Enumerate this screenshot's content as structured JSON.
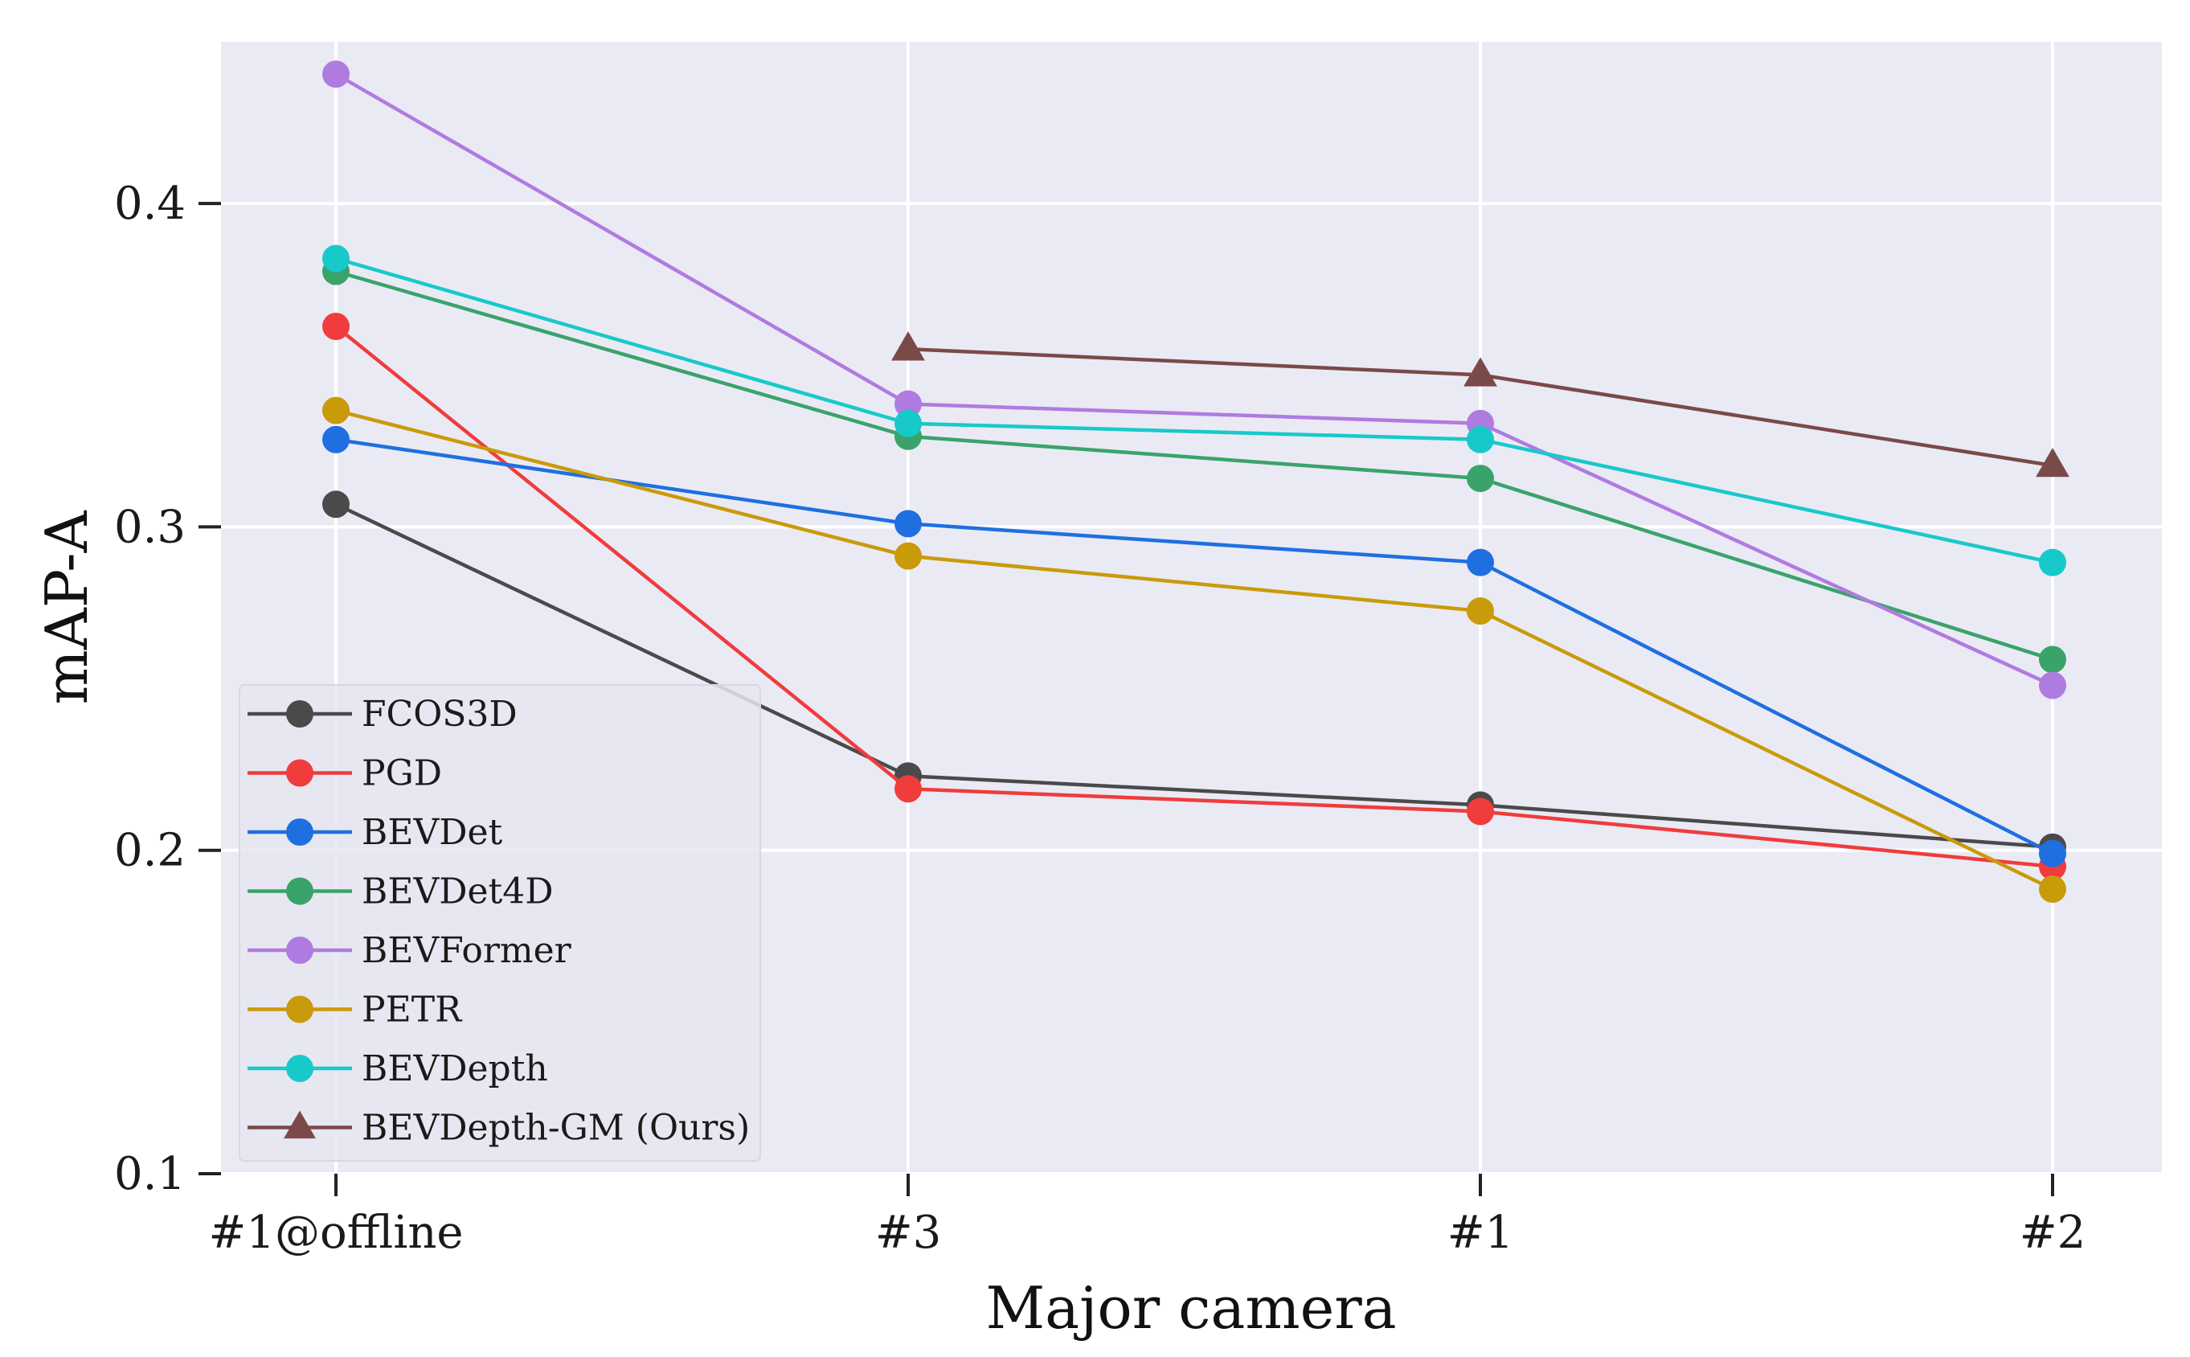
{
  "chart_data": {
    "type": "line",
    "title": "",
    "xlabel": "Major camera",
    "ylabel": "mAP-A",
    "categories": [
      "#1@offline",
      "#3",
      "#1",
      "#2"
    ],
    "ylim": [
      0.1,
      0.45
    ],
    "yticks": [
      0.1,
      0.2,
      0.3,
      0.4
    ],
    "ytick_labels": [
      "0.1",
      "0.2",
      "0.3",
      "0.4"
    ],
    "grid": true,
    "legend_position": "lower-left",
    "background": "#eaeaf5",
    "series": [
      {
        "name": "FCOS3D",
        "color": "#4a4a4a",
        "marker": "circle",
        "values": [
          0.307,
          0.223,
          0.214,
          0.201
        ]
      },
      {
        "name": "PGD",
        "color": "#f03c3c",
        "marker": "circle",
        "values": [
          0.362,
          0.219,
          0.212,
          0.195
        ]
      },
      {
        "name": "BEVDet",
        "color": "#1f6fe0",
        "marker": "circle",
        "values": [
          0.327,
          0.301,
          0.289,
          0.199
        ]
      },
      {
        "name": "BEVDet4D",
        "color": "#3aa36a",
        "marker": "circle",
        "values": [
          0.379,
          0.328,
          0.315,
          0.259
        ]
      },
      {
        "name": "BEVFormer",
        "color": "#b07be0",
        "marker": "circle",
        "values": [
          0.44,
          0.338,
          0.332,
          0.251
        ]
      },
      {
        "name": "PETR",
        "color": "#c99a0a",
        "marker": "circle",
        "values": [
          0.336,
          0.291,
          0.274,
          0.188
        ]
      },
      {
        "name": "BEVDepth",
        "color": "#18c9c9",
        "marker": "circle",
        "values": [
          0.383,
          0.332,
          0.327,
          0.289
        ]
      },
      {
        "name": "BEVDepth-GM (Ours)",
        "color": "#7a4a48",
        "marker": "triangle",
        "values": [
          null,
          0.355,
          0.347,
          0.319
        ]
      }
    ]
  }
}
